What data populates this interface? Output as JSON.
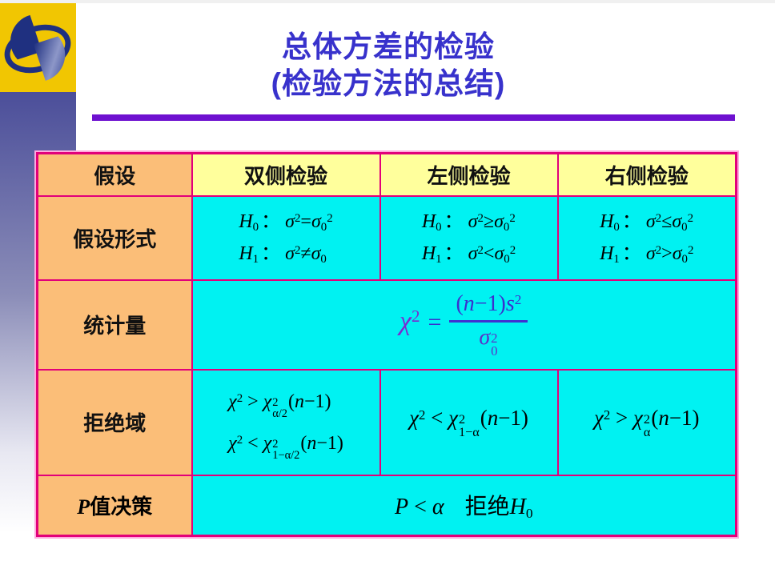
{
  "slide": {
    "title_line1": "总体方差的检验",
    "title_line2": "(检验方法的总结)"
  },
  "table": {
    "header": {
      "c1": "假设",
      "c2": "双侧检验",
      "c3": "左侧检验",
      "c4": "右侧检验"
    },
    "hyp": {
      "label": "假设形式",
      "two_h0": "<i>H</i><sub>0</sub><span class='col'>：</span><i>σ</i><sup>2</sup>=<i>σ</i><sub>0</sub><sup>2</sup>",
      "two_h1": "<i>H</i><sub>1</sub><span class='col'>：</span><i>σ</i><sup>2</sup>≠<i>σ</i><sub>0</sub>",
      "left_h0": "<i>H</i><sub>0</sub><span class='col'>：</span><i>σ</i><sup>2</sup>≥<i>σ</i><sub>0</sub><sup>2</sup>",
      "left_h1": "<i>H</i><sub>1</sub><span class='col'>：</span><i>σ</i><sup>2</sup>&lt;<i>σ</i><sub>0</sub><sup>2</sup>",
      "right_h0": "<i>H</i><sub>0</sub><span class='col'>：</span><i>σ</i><sup>2</sup>≤<i>σ</i><sub>0</sub><sup>2</sup>",
      "right_h1": "<i>H</i><sub>1</sub><span class='col'>：</span><i>σ</i><sup>2</sup>&gt;<i>σ</i><sub>0</sub><sup>2</sup>"
    },
    "stat": {
      "label": "统计量",
      "formula": "<span class='chi'><i>χ</i><sup>2</sup></span><span class='eq'>=</span><span class='frac'><span class='num'>(<i>n</i>−1)<i>s</i><sup>2</sup></span><span class='den'><i>σ</i><span class='ss'><span class='t'>2</span><span class='b'>0</span></span></span></span>",
      "formula_plain": "χ² = (n−1)s² / σ₀²"
    },
    "rej": {
      "label": "拒绝域",
      "two_1": "<i>χ</i><sup>2</sup> &gt; <i>χ</i><span class='ss'><span class='t'>2</span><span class='b'>α/2</span></span>(<i>n</i>−1)",
      "two_2": "<i>χ</i><sup>2</sup> &lt; <i>χ</i><span class='ss'><span class='t'>2</span><span class='b'>1−α/2</span></span>(<i>n</i>−1)",
      "left": "<i>χ</i><sup>2</sup> &lt; <i>χ</i><span class='ss'><span class='t'>2</span><span class='b'>1−α</span></span>(<i>n</i>−1)",
      "right": "<i>χ</i><sup>2</sup> &gt; <i>χ</i><span class='ss'><span class='t'>2</span><span class='b'>α</span></span>(<i>n</i>−1)"
    },
    "pval": {
      "label": "<i>P</i>值决策",
      "decision": "<i>P</i> &lt; <i>α</i><span class='wgap'></span>拒绝<i>H</i><sub>0</sub>"
    }
  },
  "colors": {
    "title_text": "#3832cc",
    "title_underline": "#6e11d0",
    "table_border": "#e2007a",
    "label_bg": "#fbbe78",
    "header_bg": "#ffff9c",
    "cell_bg": "#00f2f2",
    "band_top": "#43478f",
    "logo_yellow": "#f1c602",
    "logo_navy": "#1f3080",
    "formula_blue": "#3a30ce",
    "formula_chi_purple": "#7b2bd0"
  }
}
